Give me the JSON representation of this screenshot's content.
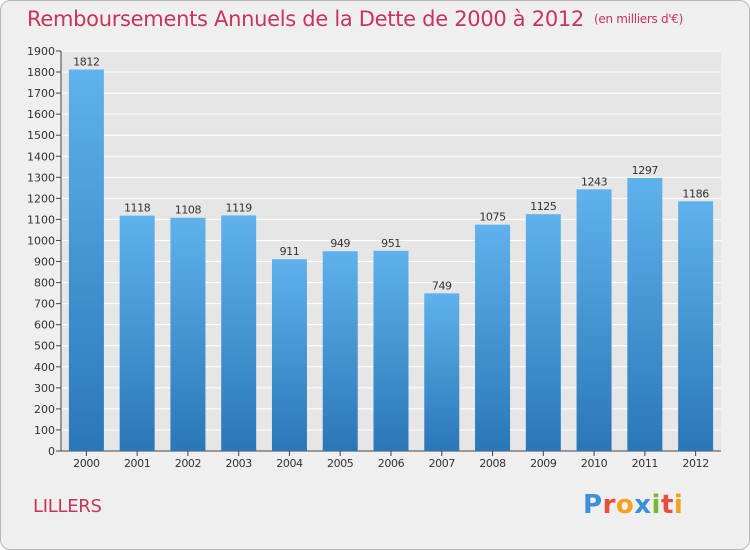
{
  "title": "Remboursements Annuels de la Dette de 2000 à 2012",
  "unit": "(en milliers d'€)",
  "town": "LILLERS",
  "logo": {
    "letters": [
      {
        "ch": "P",
        "color": "#3c8fd8"
      },
      {
        "ch": "r",
        "color": "#e94e3c"
      },
      {
        "ch": "o",
        "color": "#f2a21c"
      },
      {
        "ch": "x",
        "color": "#3c8fd8"
      },
      {
        "ch": "i",
        "color": "#79b833"
      },
      {
        "ch": "t",
        "color": "#e94e3c"
      },
      {
        "ch": "i",
        "color": "#f2a21c"
      }
    ]
  },
  "chart_data": {
    "type": "bar",
    "title": "Remboursements Annuels de la Dette de 2000 à 2012",
    "categories": [
      "2000",
      "2001",
      "2002",
      "2003",
      "2004",
      "2005",
      "2006",
      "2007",
      "2008",
      "2009",
      "2010",
      "2011",
      "2012"
    ],
    "values": [
      1812,
      1118,
      1108,
      1119,
      911,
      949,
      951,
      749,
      1075,
      1125,
      1243,
      1297,
      1186
    ],
    "ylim": [
      0,
      1900
    ],
    "yticks": [
      0,
      100,
      200,
      300,
      400,
      500,
      600,
      700,
      800,
      900,
      1000,
      1100,
      1200,
      1300,
      1400,
      1500,
      1600,
      1700,
      1800,
      1900
    ],
    "grid": true,
    "bar_color": "#4aa0e0"
  }
}
